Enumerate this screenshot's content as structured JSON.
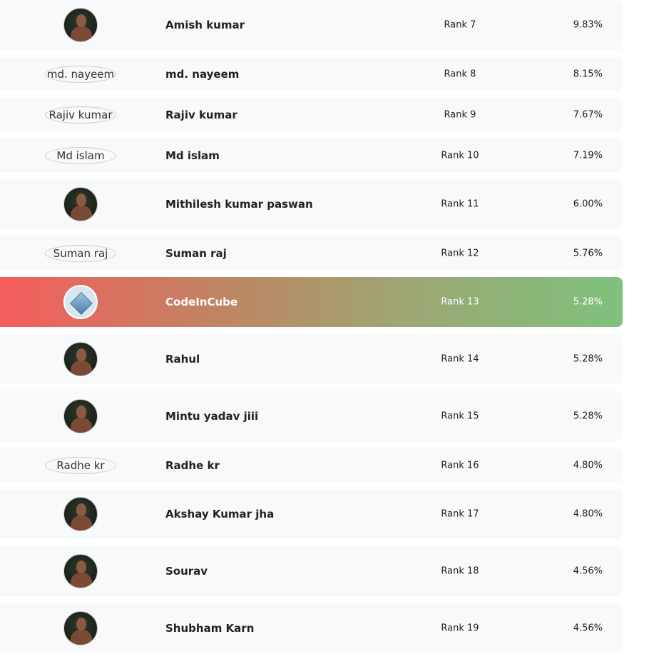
{
  "leaderboard": {
    "rows": [
      {
        "name": "Amish kumar",
        "rank": "Rank 7",
        "percent": "9.83%",
        "avatar": "photo"
      },
      {
        "name": "md. nayeem",
        "rank": "Rank 8",
        "percent": "8.15%",
        "avatar": "missing"
      },
      {
        "name": "Rajiv kumar",
        "rank": "Rank 9",
        "percent": "7.67%",
        "avatar": "missing"
      },
      {
        "name": "Md islam",
        "rank": "Rank 10",
        "percent": "7.19%",
        "avatar": "missing"
      },
      {
        "name": "Mithilesh kumar paswan",
        "rank": "Rank 11",
        "percent": "6.00%",
        "avatar": "photo"
      },
      {
        "name": "Suman raj",
        "rank": "Rank 12",
        "percent": "5.76%",
        "avatar": "missing"
      },
      {
        "name": "CodeInCube",
        "rank": "Rank 13",
        "percent": "5.28%",
        "avatar": "logo",
        "highlight": true
      },
      {
        "name": "Rahul",
        "rank": "Rank 14",
        "percent": "5.28%",
        "avatar": "photo"
      },
      {
        "name": "Mintu yadav jiii",
        "rank": "Rank 15",
        "percent": "5.28%",
        "avatar": "photo"
      },
      {
        "name": "Radhe kr",
        "rank": "Rank 16",
        "percent": "4.80%",
        "avatar": "missing"
      },
      {
        "name": "Akshay Kumar jha",
        "rank": "Rank 17",
        "percent": "4.80%",
        "avatar": "photo"
      },
      {
        "name": "Sourav",
        "rank": "Rank 18",
        "percent": "4.56%",
        "avatar": "photo"
      },
      {
        "name": "Shubham Karn",
        "rank": "Rank 19",
        "percent": "4.56%",
        "avatar": "photo"
      }
    ]
  }
}
